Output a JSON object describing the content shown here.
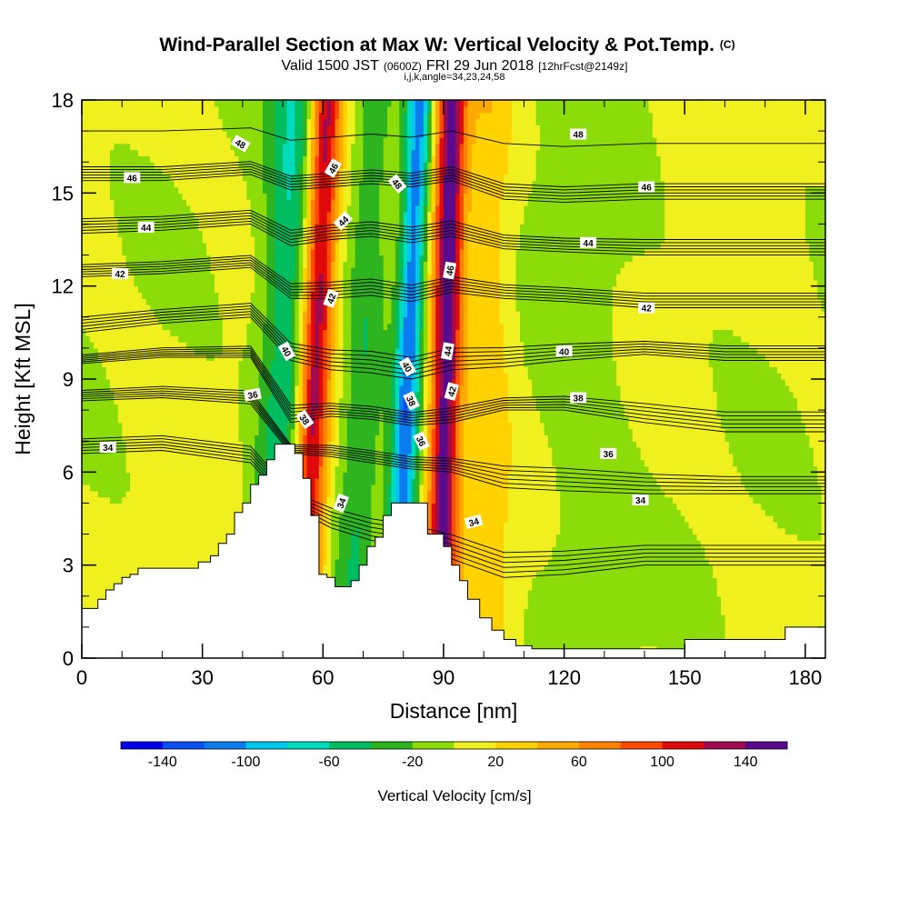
{
  "chart_data": {
    "type": "heatmap",
    "title": "Wind-Parallel Section at Max W: Vertical Velocity & Pot.Temp.",
    "title_mark": "(C)",
    "subtitle": {
      "valid": "Valid 1500 JST",
      "utc": "(0600Z)",
      "date": "FRI 29 Jun 2018",
      "fcst": "[12hrFcst@2149z]"
    },
    "indices": "i,j,k,angle=34,23,24,58",
    "xlabel": "Distance [nm]",
    "ylabel": "Height [Kft MSL]",
    "xlim": [
      0,
      185
    ],
    "ylim": [
      0,
      18
    ],
    "xticks": [
      0,
      30,
      60,
      90,
      120,
      150,
      180
    ],
    "yticks": [
      0,
      3,
      6,
      9,
      12,
      15,
      18
    ],
    "colorbar": {
      "label": "Vertical Velocity [cm/s]",
      "tick_labels": [
        "-140",
        "-100",
        "-60",
        "-20",
        "20",
        "60",
        "100",
        "140"
      ],
      "tick_values": [
        -140,
        -100,
        -60,
        -20,
        20,
        60,
        100,
        140
      ],
      "range": [
        -160,
        160
      ],
      "bins": [
        {
          "lo": -160,
          "hi": -140,
          "color": "#0000ee"
        },
        {
          "lo": -140,
          "hi": -120,
          "color": "#0a50f0"
        },
        {
          "lo": -120,
          "hi": -100,
          "color": "#0a7cf0"
        },
        {
          "lo": -100,
          "hi": -80,
          "color": "#00c8ee"
        },
        {
          "lo": -80,
          "hi": -60,
          "color": "#00dcbc"
        },
        {
          "lo": -60,
          "hi": -40,
          "color": "#00be60"
        },
        {
          "lo": -40,
          "hi": -20,
          "color": "#2eb41e"
        },
        {
          "lo": -20,
          "hi": 0,
          "color": "#8cdc0a"
        },
        {
          "lo": 0,
          "hi": 20,
          "color": "#f0f01e"
        },
        {
          "lo": 20,
          "hi": 40,
          "color": "#ffd200"
        },
        {
          "lo": 40,
          "hi": 60,
          "color": "#ffaa00"
        },
        {
          "lo": 60,
          "hi": 80,
          "color": "#ff8200"
        },
        {
          "lo": 80,
          "hi": 100,
          "color": "#ff4b00"
        },
        {
          "lo": 100,
          "hi": 120,
          "color": "#e10a0a"
        },
        {
          "lo": 120,
          "hi": 140,
          "color": "#a00a50"
        },
        {
          "lo": 140,
          "hi": 160,
          "color": "#5a0a8c"
        }
      ]
    },
    "terrain": {
      "x": [
        0,
        4,
        6,
        8,
        10,
        12,
        14,
        20,
        26,
        29,
        30,
        32,
        34,
        36,
        38,
        40,
        42,
        44,
        46,
        48,
        51,
        53,
        55,
        57,
        59,
        61,
        63,
        67,
        69,
        71,
        73,
        75,
        77,
        82,
        84,
        86,
        90,
        92,
        94,
        96,
        99,
        102,
        105,
        108,
        112,
        116,
        120,
        124,
        130,
        136,
        141,
        150,
        156,
        166,
        175,
        185
      ],
      "height": [
        1.6,
        1.9,
        2.2,
        2.4,
        2.6,
        2.7,
        2.9,
        2.9,
        2.9,
        3.1,
        3.1,
        3.3,
        3.7,
        4.0,
        4.7,
        5.0,
        5.6,
        5.9,
        6.4,
        6.9,
        6.9,
        6.6,
        5.8,
        4.6,
        2.7,
        2.6,
        2.3,
        2.5,
        3.0,
        3.6,
        3.9,
        4.6,
        5.0,
        5.0,
        5.0,
        4.0,
        3.6,
        3.0,
        2.5,
        1.9,
        1.3,
        0.9,
        0.6,
        0.4,
        0.3,
        0.3,
        0.3,
        0.3,
        0.3,
        0.3,
        0.3,
        0.6,
        0.6,
        0.6,
        1.0,
        1.0
      ]
    },
    "series": [
      {
        "theta": 34,
        "y": [
          6.6,
          6.7,
          6.3,
          4.9,
          4.2,
          3.8,
          3.6,
          3.2,
          2.6,
          2.7,
          3.0,
          3.0,
          3.0,
          3.0
        ]
      },
      {
        "theta": 36,
        "y": [
          8.3,
          8.4,
          8.2,
          6.6,
          6.5,
          6.3,
          6.1,
          6.0,
          5.5,
          5.4,
          5.3,
          5.3,
          5.3,
          5.3
        ]
      },
      {
        "theta": 38,
        "y": [
          9.5,
          9.7,
          9.7,
          7.6,
          7.8,
          7.7,
          7.5,
          7.6,
          8.0,
          8.0,
          7.6,
          7.3,
          7.3,
          7.3
        ]
      },
      {
        "theta": 40,
        "y": [
          10.5,
          10.8,
          11.0,
          9.6,
          9.3,
          9.2,
          9.0,
          9.3,
          9.4,
          9.6,
          9.8,
          9.6,
          9.6,
          9.6
        ]
      },
      {
        "theta": 42,
        "y": [
          12.3,
          12.4,
          12.6,
          11.6,
          11.6,
          11.7,
          11.5,
          11.8,
          11.6,
          11.5,
          11.3,
          11.3,
          11.3,
          11.3
        ]
      },
      {
        "theta": 44,
        "y": [
          13.7,
          13.8,
          14.0,
          13.3,
          13.5,
          13.6,
          13.4,
          13.6,
          13.2,
          13.1,
          13.0,
          13.0,
          13.0,
          13.0
        ]
      },
      {
        "theta": 46,
        "y": [
          15.4,
          15.4,
          15.6,
          15.1,
          15.2,
          15.3,
          15.2,
          15.4,
          14.8,
          14.7,
          14.8,
          14.8,
          14.8,
          14.8
        ]
      },
      {
        "theta": 48,
        "y": [
          17.0,
          17.0,
          17.1,
          16.7,
          16.8,
          16.9,
          16.8,
          17.0,
          16.6,
          16.5,
          16.6,
          16.6,
          16.6,
          16.6
        ]
      }
    ],
    "series_x": [
      0,
      20,
      42,
      52,
      62,
      72,
      82,
      92,
      105,
      120,
      140,
      160,
      175,
      185
    ],
    "isentrope_offsets": [
      0,
      0.3333,
      0.6667,
      1.0,
      1.3333,
      1.6667
    ],
    "w_bands": [
      {
        "x0": 52.5,
        "x1": 47.5,
        "w": 4.2,
        "amp": -60
      },
      {
        "x0": 61,
        "x1": 55,
        "w": 2.7,
        "amp": 125
      },
      {
        "x0": 73,
        "x1": 67,
        "w": 3.5,
        "amp": -40
      },
      {
        "x0": 84,
        "x1": 78,
        "w": 2.3,
        "amp": -115
      },
      {
        "x0": 92,
        "x1": 89,
        "w": 2.6,
        "amp": 150
      },
      {
        "x0": 101,
        "x1": 100,
        "w": 4.5,
        "amp": 32
      },
      {
        "x0": 124,
        "x1": 125,
        "w": 8.0,
        "amp": -15
      }
    ],
    "contour_labels": [
      {
        "text": "48",
        "x": 39.5,
        "y": 16.6,
        "rot": 30
      },
      {
        "text": "46",
        "x": 12.5,
        "y": 15.5,
        "rot": 0
      },
      {
        "text": "44",
        "x": 16,
        "y": 13.9,
        "rot": 0
      },
      {
        "text": "42",
        "x": 9.5,
        "y": 12.4,
        "rot": 0
      },
      {
        "text": "34",
        "x": 6.5,
        "y": 6.8,
        "rot": 0
      },
      {
        "text": "36",
        "x": 42.5,
        "y": 8.5,
        "rot": -10
      },
      {
        "text": "40",
        "x": 51,
        "y": 9.9,
        "rot": 60
      },
      {
        "text": "38",
        "x": 55.5,
        "y": 7.7,
        "rot": 55
      },
      {
        "text": "34",
        "x": 64.5,
        "y": 5.0,
        "rot": -70
      },
      {
        "text": "42",
        "x": 62,
        "y": 11.6,
        "rot": -70
      },
      {
        "text": "44",
        "x": 65,
        "y": 14.1,
        "rot": -45
      },
      {
        "text": "46",
        "x": 62.5,
        "y": 15.8,
        "rot": -60
      },
      {
        "text": "48",
        "x": 78.5,
        "y": 15.3,
        "rot": 50
      },
      {
        "text": "40",
        "x": 81,
        "y": 9.4,
        "rot": 60
      },
      {
        "text": "38",
        "x": 82,
        "y": 8.3,
        "rot": 65
      },
      {
        "text": "36",
        "x": 84.5,
        "y": 7.0,
        "rot": 65
      },
      {
        "text": "46",
        "x": 91.5,
        "y": 12.5,
        "rot": -80
      },
      {
        "text": "44",
        "x": 91,
        "y": 9.9,
        "rot": -80
      },
      {
        "text": "42",
        "x": 92,
        "y": 8.6,
        "rot": -75
      },
      {
        "text": "34",
        "x": 97.5,
        "y": 4.4,
        "rot": -15
      },
      {
        "text": "48",
        "x": 123.5,
        "y": 16.9,
        "rot": 0
      },
      {
        "text": "46",
        "x": 140.5,
        "y": 15.2,
        "rot": 0
      },
      {
        "text": "44",
        "x": 126,
        "y": 13.4,
        "rot": 0
      },
      {
        "text": "42",
        "x": 140.5,
        "y": 11.3,
        "rot": 0
      },
      {
        "text": "40",
        "x": 120,
        "y": 9.9,
        "rot": 0
      },
      {
        "text": "38",
        "x": 123.5,
        "y": 8.4,
        "rot": 0
      },
      {
        "text": "36",
        "x": 131,
        "y": 6.6,
        "rot": 0
      },
      {
        "text": "34",
        "x": 139,
        "y": 5.1,
        "rot": 0
      }
    ]
  }
}
